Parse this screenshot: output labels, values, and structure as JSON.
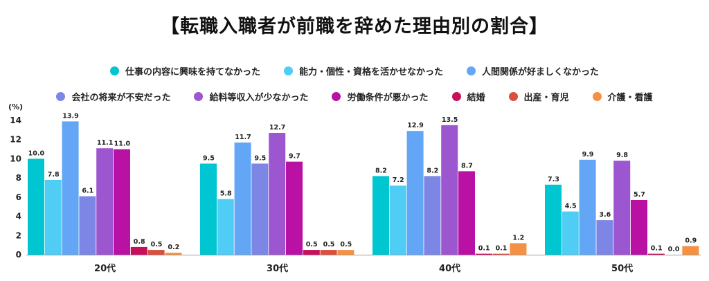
{
  "title": "【転職入職者が前職を辞めた理由別の割合】",
  "chart_data": {
    "type": "bar",
    "title": "【転職入職者が前職を辞めた理由別の割合】",
    "ylabel": "(%)",
    "ylim": [
      0,
      14
    ],
    "yticks": [
      0,
      2,
      4,
      6,
      8,
      10,
      12,
      14
    ],
    "grid": false,
    "legend_position": "top",
    "categories": [
      "20代",
      "30代",
      "40代",
      "50代"
    ],
    "series": [
      {
        "name": "仕事の内容に興味を持てなかった",
        "color": "#00c6d2",
        "values": [
          10.0,
          9.5,
          8.2,
          7.3
        ]
      },
      {
        "name": "能力・個性・資格を活かせなかった",
        "color": "#4fcdf5",
        "values": [
          7.8,
          5.8,
          7.2,
          4.5
        ]
      },
      {
        "name": "人間関係が好ましくなかった",
        "color": "#62a6f5",
        "values": [
          13.9,
          11.7,
          12.9,
          9.9
        ]
      },
      {
        "name": "会社の将来が不安だった",
        "color": "#7d86e4",
        "values": [
          6.1,
          9.5,
          8.2,
          3.6
        ]
      },
      {
        "name": "給料等収入が少なかった",
        "color": "#9c56cf",
        "values": [
          11.1,
          12.7,
          13.5,
          9.8
        ]
      },
      {
        "name": "労働条件が悪かった",
        "color": "#b911a3",
        "values": [
          11.0,
          9.7,
          8.7,
          5.7
        ]
      },
      {
        "name": "結婚",
        "color": "#c8105a",
        "values": [
          0.8,
          0.5,
          0.1,
          0.1
        ]
      },
      {
        "name": "出産・育児",
        "color": "#da4f3d",
        "values": [
          0.5,
          0.5,
          0.1,
          0.0
        ]
      },
      {
        "name": "介護・看護",
        "color": "#f49144",
        "values": [
          0.2,
          0.5,
          1.2,
          0.9
        ]
      }
    ]
  }
}
